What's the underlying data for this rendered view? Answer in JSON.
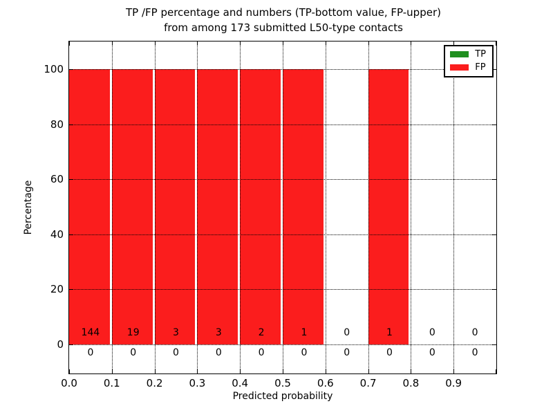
{
  "chart_data": {
    "type": "bar",
    "stacked": true,
    "title_line1": "TP /FP percentage and numbers (TP-bottom value, FP-upper)",
    "title_line2": "from among 173 submitted L50-type contacts",
    "title": "TP /FP percentage and numbers (TP-bottom value, FP-upper) from among 173 submitted L50-type contacts",
    "xlabel": "Predicted probability",
    "ylabel": "Percentage",
    "x_tick_labels": [
      "0.0",
      "0.1",
      "0.2",
      "0.3",
      "0.4",
      "0.5",
      "0.6",
      "0.7",
      "0.8",
      "0.9"
    ],
    "y_tick_labels": [
      0,
      20,
      40,
      60,
      80,
      100
    ],
    "xlim": [
      0.0,
      1.0
    ],
    "ylim": [
      -10.5,
      110
    ],
    "bin_width": 0.1,
    "grid_style": "dotted",
    "legend_position": "upper right",
    "total_contacts": 173,
    "series": [
      {
        "name": "TP",
        "color": "#1f8f1f",
        "percentages": [
          0,
          0,
          0,
          0,
          0,
          0,
          0,
          0,
          0,
          0
        ],
        "counts": [
          0,
          0,
          0,
          0,
          0,
          0,
          0,
          0,
          0,
          0
        ],
        "count_row": "bottom"
      },
      {
        "name": "FP",
        "color": "#fb1d1d",
        "percentages": [
          100,
          100,
          100,
          100,
          100,
          100,
          0,
          100,
          0,
          0
        ],
        "counts": [
          144,
          19,
          3,
          3,
          2,
          1,
          0,
          1,
          0,
          0
        ],
        "count_row": "upper"
      }
    ]
  }
}
